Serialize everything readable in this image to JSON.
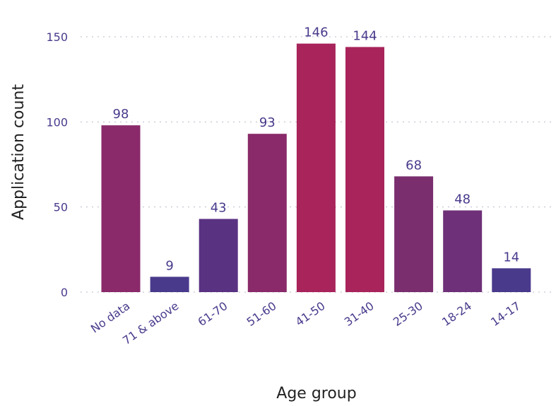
{
  "chart_data": {
    "type": "bar",
    "categories": [
      "No data",
      "71 & above",
      "61-70",
      "51-60",
      "41-50",
      "31-40",
      "25-30",
      "18-24",
      "14-17"
    ],
    "values": [
      98,
      9,
      43,
      93,
      146,
      144,
      68,
      48,
      14
    ],
    "colors": [
      "#8a2a6a",
      "#4a3a8c",
      "#5a3282",
      "#8a2a6a",
      "#a8245a",
      "#a8245a",
      "#7a2e6e",
      "#6e3078",
      "#4a3a8c"
    ],
    "xlabel": "Age group",
    "ylabel": "Application count",
    "ylim": [
      0,
      160
    ],
    "yticks": [
      0,
      50,
      100,
      150
    ],
    "grid": true
  }
}
